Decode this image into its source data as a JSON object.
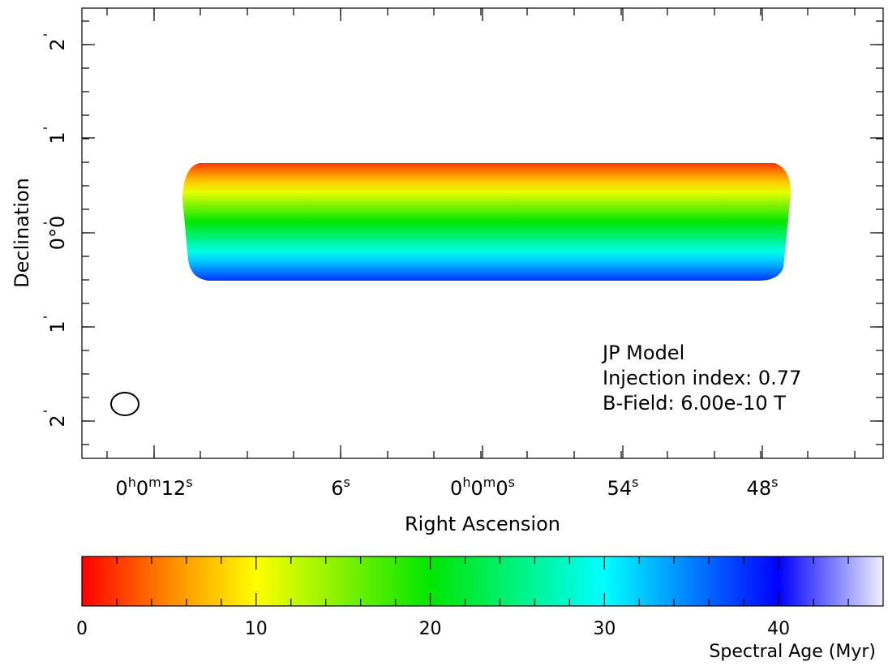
{
  "chart_data": {
    "type": "heatmap",
    "title": "",
    "xlabel": "Right Ascension",
    "ylabel": "Declination",
    "x_ticks": [
      {
        "h": "0",
        "m": "0",
        "s": "12"
      },
      {
        "h": "",
        "m": "",
        "s": "6"
      },
      {
        "h": "0",
        "m": "0",
        "s": "0"
      },
      {
        "h": "",
        "m": "",
        "s": "54"
      },
      {
        "h": "",
        "m": "",
        "s": "48"
      }
    ],
    "y_ticks": [
      "2",
      "1",
      "0°0",
      "1",
      "2"
    ],
    "annotations": [
      "JP Model",
      "Injection index: 0.77",
      "B-Field: 6.00e-10 T"
    ],
    "beam": "ellipse",
    "colorbar": {
      "label": "Spectral Age (Myr)",
      "ticks": [
        0,
        10,
        20,
        30,
        40
      ],
      "range": [
        0,
        46
      ],
      "stops": [
        {
          "value": 0,
          "color": "#ff0000"
        },
        {
          "value": 5,
          "color": "#ff8800"
        },
        {
          "value": 10,
          "color": "#ffff00"
        },
        {
          "value": 20,
          "color": "#00e600"
        },
        {
          "value": 30,
          "color": "#00ffff"
        },
        {
          "value": 40,
          "color": "#0000ff"
        },
        {
          "value": 46,
          "color": "#f0f0ff"
        }
      ]
    },
    "source": {
      "age_top": 2,
      "age_middle": 20,
      "age_bottom": 38
    }
  }
}
